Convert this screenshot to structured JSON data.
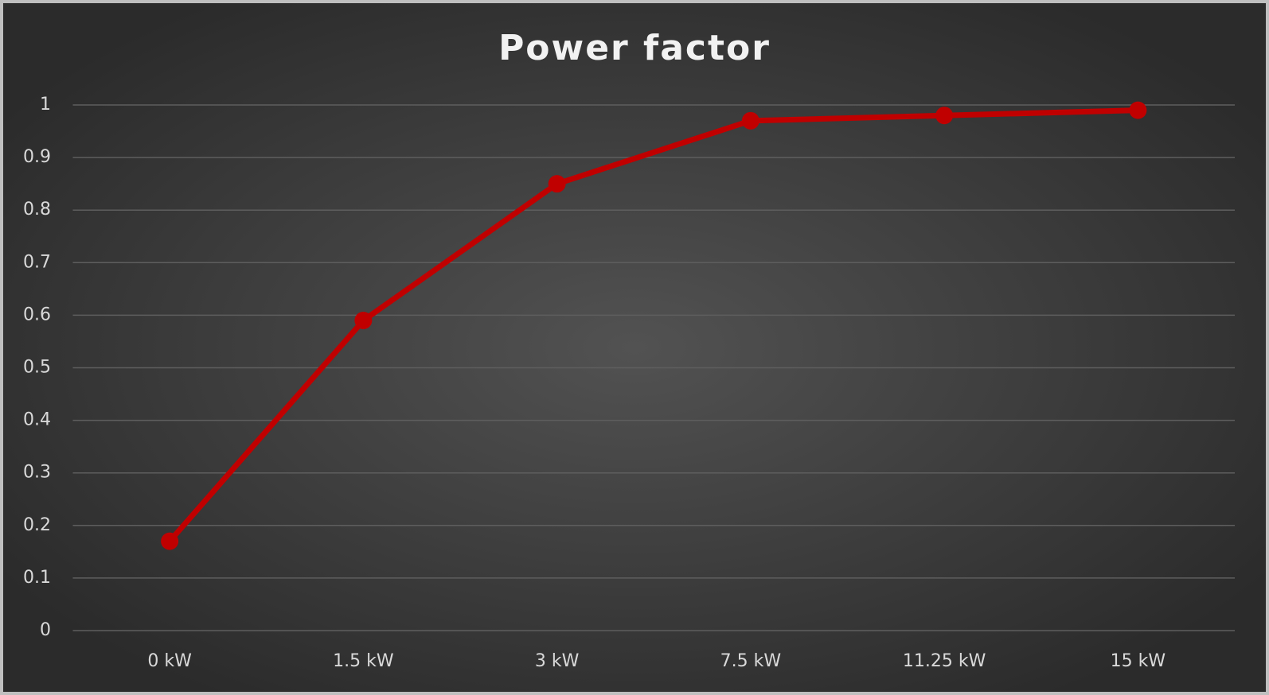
{
  "chart_data": {
    "type": "line",
    "title": "Power factor",
    "categories": [
      "0 kW",
      "1.5 kW",
      "3 kW",
      "7.5 kW",
      "11.25 kW",
      "15 kW"
    ],
    "values": [
      0.17,
      0.59,
      0.85,
      0.97,
      0.98,
      0.99
    ],
    "color": "#c00000",
    "ylim": [
      0,
      1
    ],
    "yticks": [
      0,
      0.1,
      0.2,
      0.3,
      0.4,
      0.5,
      0.6,
      0.7,
      0.8,
      0.9,
      1
    ],
    "grid": true
  }
}
